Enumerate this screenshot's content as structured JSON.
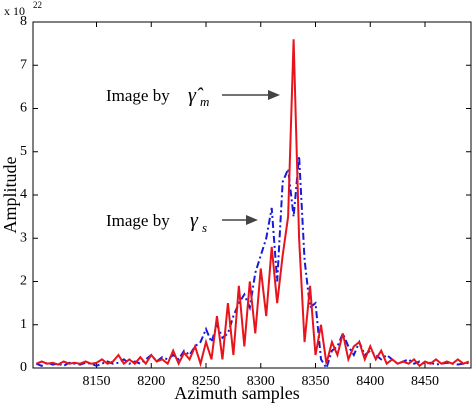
{
  "chart_data": {
    "type": "line",
    "y_label": "Amplitude",
    "x_label": "Azimuth samples",
    "multiplier": {
      "base": "x 10",
      "exponent": "22"
    },
    "annotations": [
      {
        "text": "Image by",
        "symbol": "γ̂",
        "subscript": "m"
      },
      {
        "text": "Image by",
        "symbol": "γ",
        "subscript": "s"
      }
    ],
    "xlim": [
      8092,
      8492
    ],
    "ylim": [
      0,
      8
    ],
    "xticks": [
      8150,
      8200,
      8250,
      8300,
      8350,
      8400,
      8450
    ],
    "yticks": [
      0,
      1,
      2,
      3,
      4,
      5,
      6,
      7,
      8
    ],
    "x": [
      8095,
      8100,
      8105,
      8110,
      8115,
      8120,
      8125,
      8130,
      8135,
      8140,
      8145,
      8150,
      8155,
      8160,
      8165,
      8170,
      8175,
      8180,
      8185,
      8190,
      8195,
      8200,
      8205,
      8210,
      8215,
      8220,
      8225,
      8230,
      8235,
      8240,
      8245,
      8250,
      8255,
      8260,
      8265,
      8270,
      8275,
      8280,
      8285,
      8290,
      8295,
      8300,
      8305,
      8310,
      8315,
      8320,
      8325,
      8330,
      8335,
      8340,
      8345,
      8350,
      8355,
      8360,
      8365,
      8370,
      8375,
      8380,
      8385,
      8390,
      8395,
      8400,
      8405,
      8410,
      8415,
      8420,
      8425,
      8430,
      8435,
      8440,
      8445,
      8450,
      8455,
      8460,
      8465,
      8470,
      8475,
      8480,
      8485,
      8490
    ],
    "series": [
      {
        "color": "#e8141c",
        "dash": "solid",
        "values": [
          0.1,
          0.15,
          0.1,
          0.12,
          0.08,
          0.15,
          0.1,
          0.12,
          0.1,
          0.15,
          0.1,
          0.12,
          0.2,
          0.1,
          0.15,
          0.3,
          0.1,
          0.2,
          0.1,
          0.25,
          0.1,
          0.3,
          0.15,
          0.2,
          0.1,
          0.4,
          0.1,
          0.35,
          0.2,
          0.5,
          0.1,
          0.6,
          0.2,
          1.2,
          0.2,
          1.5,
          0.3,
          1.9,
          0.5,
          2.0,
          0.8,
          2.3,
          1.2,
          2.8,
          1.5,
          2.6,
          3.5,
          7.6,
          3.0,
          0.6,
          1.9,
          0.3,
          1.0,
          0.1,
          0.6,
          0.3,
          0.8,
          0.2,
          0.5,
          0.6,
          0.2,
          0.5,
          0.2,
          0.4,
          0.1,
          0.2,
          0.1,
          0.15,
          0.1,
          0.2,
          0.05,
          0.15,
          0.1,
          0.2,
          0.1,
          0.15,
          0.1,
          0.2,
          0.1,
          0.15
        ]
      },
      {
        "color": "#1a1ad6",
        "dash": "dashdot",
        "values": [
          0.1,
          0.05,
          0.12,
          0.08,
          0.1,
          0.05,
          0.12,
          0.1,
          0.08,
          0.12,
          0.1,
          0.05,
          0.1,
          0.15,
          0.1,
          0.12,
          0.2,
          0.1,
          0.15,
          0.1,
          0.2,
          0.3,
          0.15,
          0.25,
          0.2,
          0.3,
          0.2,
          0.4,
          0.3,
          0.5,
          0.6,
          0.9,
          0.6,
          1.0,
          0.7,
          0.8,
          1.2,
          1.5,
          1.7,
          1.4,
          2.2,
          2.6,
          3.0,
          3.7,
          2.0,
          4.3,
          4.6,
          3.5,
          4.9,
          2.5,
          1.4,
          1.5,
          0.2,
          0.0,
          0.4,
          0.5,
          0.8,
          0.5,
          0.3,
          0.6,
          0.3,
          0.4,
          0.3,
          0.2,
          0.3,
          0.2,
          0.1,
          0.15,
          0.2,
          0.1,
          0.15,
          0.1,
          0.12,
          0.08,
          0.1,
          0.12,
          0.1,
          0.08,
          0.1,
          0.12
        ]
      }
    ]
  }
}
